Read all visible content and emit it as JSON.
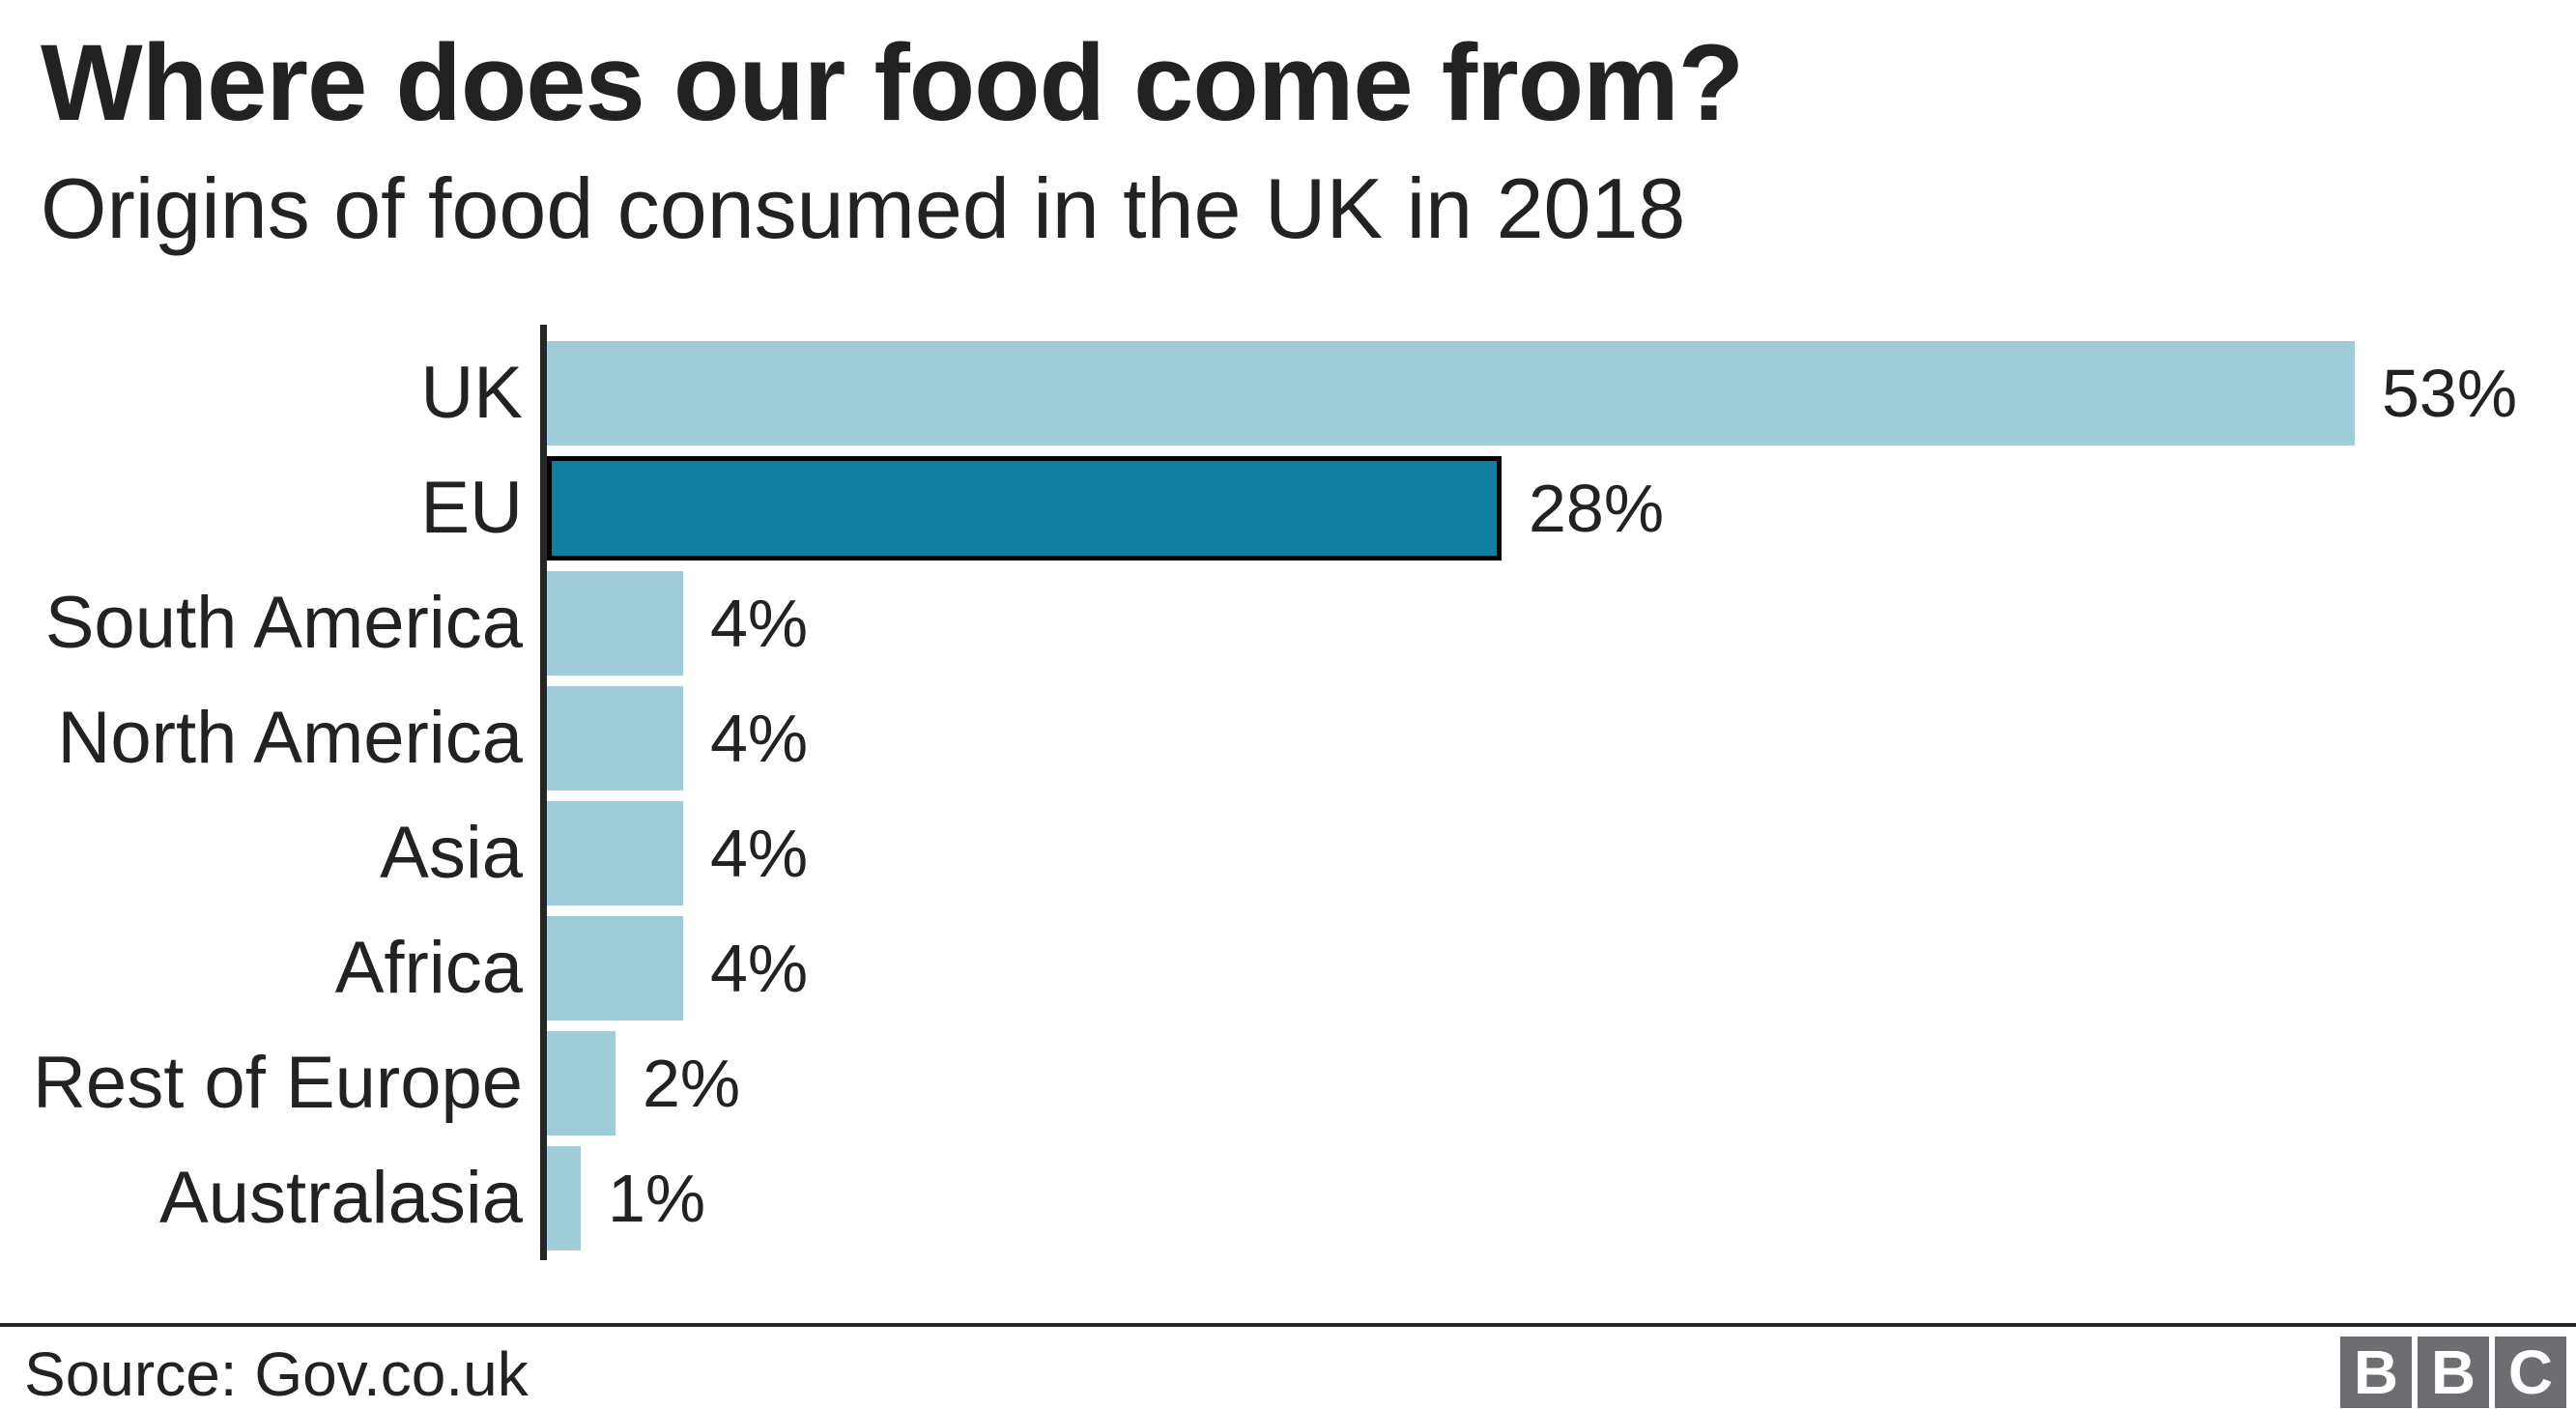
{
  "chart_data": {
    "type": "bar",
    "orientation": "horizontal",
    "title": "Where does our food come from?",
    "subtitle": "Origins of food consumed in the UK in 2018",
    "categories": [
      "UK",
      "EU",
      "South America",
      "North America",
      "Asia",
      "Africa",
      "Rest of Europe",
      "Australasia"
    ],
    "values": [
      53,
      28,
      4,
      4,
      4,
      4,
      2,
      1
    ],
    "value_labels": [
      "53%",
      "28%",
      "4%",
      "4%",
      "4%",
      "4%",
      "2%",
      "1%"
    ],
    "unit": "%",
    "xlim": [
      0,
      59
    ],
    "grid": false,
    "legend": false,
    "value_labels_position": "end-of-bar",
    "highlight_index": 1,
    "colors": {
      "bar": "#a0cbd8",
      "highlight_bar": "#137fa0",
      "highlight_border": "#000000",
      "axis": "#262626",
      "text": "#222222",
      "background": "#ffffff"
    }
  },
  "footer": {
    "source": "Source: Gov.co.uk",
    "logo_letters": [
      "B",
      "B",
      "C"
    ]
  }
}
